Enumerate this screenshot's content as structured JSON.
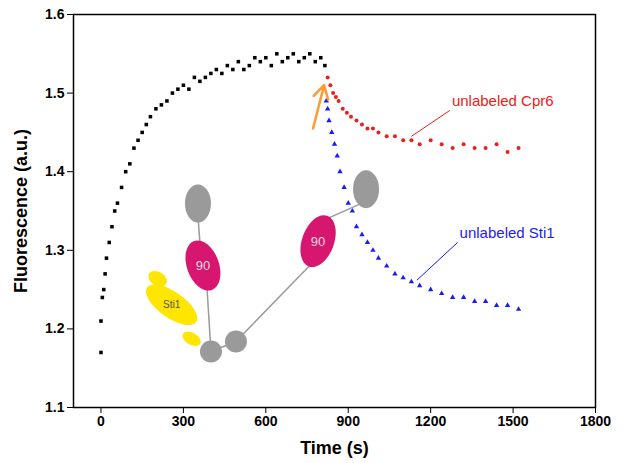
{
  "chart_data": {
    "type": "scatter",
    "x_label": "Time (s)",
    "y_label": "Fluorescence (a.u.)",
    "xlim": [
      -100,
      1800
    ],
    "xticks": [
      0,
      300,
      600,
      900,
      1200,
      1500,
      1800
    ],
    "ylim": [
      1.1,
      1.6
    ],
    "yticks": [
      1.1,
      1.2,
      1.3,
      1.4,
      1.5,
      1.6
    ],
    "grid": false,
    "series": [
      {
        "color": "#000000",
        "marker": "square",
        "x": [
          0,
          0,
          5,
          10,
          15,
          20,
          30,
          40,
          50,
          60,
          75,
          90,
          105,
          120,
          135,
          150,
          165,
          180,
          200,
          220,
          240,
          260,
          280,
          300,
          320,
          340,
          360,
          380,
          400,
          420,
          440,
          460,
          480,
          500,
          520,
          540,
          560,
          580,
          600,
          620,
          640,
          660,
          680,
          700,
          720,
          740,
          760,
          780,
          800,
          815
        ],
        "values": [
          1.17,
          1.21,
          1.24,
          1.25,
          1.27,
          1.29,
          1.31,
          1.33,
          1.35,
          1.36,
          1.38,
          1.4,
          1.41,
          1.43,
          1.44,
          1.45,
          1.46,
          1.47,
          1.48,
          1.485,
          1.49,
          1.5,
          1.505,
          1.51,
          1.505,
          1.52,
          1.515,
          1.52,
          1.525,
          1.53,
          1.525,
          1.535,
          1.53,
          1.54,
          1.53,
          1.535,
          1.545,
          1.54,
          1.545,
          1.535,
          1.55,
          1.54,
          1.545,
          1.55,
          1.54,
          1.545,
          1.55,
          1.54,
          1.545,
          1.535
        ]
      },
      {
        "color": "#e8211d",
        "marker": "circle",
        "x": [
          825,
          835,
          845,
          855,
          865,
          880,
          895,
          910,
          930,
          950,
          970,
          990,
          1010,
          1040,
          1070,
          1100,
          1130,
          1160,
          1200,
          1240,
          1280,
          1320,
          1360,
          1400,
          1440,
          1480,
          1520
        ],
        "values": [
          1.52,
          1.51,
          1.5,
          1.495,
          1.49,
          1.48,
          1.475,
          1.47,
          1.465,
          1.46,
          1.455,
          1.455,
          1.45,
          1.445,
          1.445,
          1.44,
          1.44,
          1.435,
          1.44,
          1.435,
          1.43,
          1.435,
          1.43,
          1.43,
          1.435,
          1.425,
          1.43
        ]
      },
      {
        "color": "#1a1aff",
        "marker": "triangle",
        "x": [
          820,
          825,
          830,
          840,
          850,
          860,
          870,
          885,
          900,
          915,
          930,
          950,
          970,
          990,
          1010,
          1040,
          1070,
          1100,
          1130,
          1160,
          1200,
          1240,
          1280,
          1320,
          1360,
          1400,
          1440,
          1480,
          1520
        ],
        "values": [
          1.49,
          1.48,
          1.465,
          1.45,
          1.435,
          1.42,
          1.4,
          1.38,
          1.36,
          1.35,
          1.33,
          1.32,
          1.31,
          1.3,
          1.29,
          1.28,
          1.27,
          1.265,
          1.26,
          1.255,
          1.25,
          1.245,
          1.24,
          1.24,
          1.235,
          1.235,
          1.23,
          1.23,
          1.225
        ]
      }
    ],
    "annotations": [
      {
        "text": "unlabeled Cpr6",
        "color": "#e8211d",
        "x": 1270,
        "y": 1.478,
        "point": [
          1130,
          1.445
        ]
      },
      {
        "text": "unlabeled Sti1",
        "color": "#1a1aff",
        "x": 1298,
        "y": 1.31,
        "point": [
          1150,
          1.262
        ]
      }
    ],
    "arrow": {
      "color": "#ff9a2e",
      "from": [
        772,
        1.455
      ],
      "to": [
        812,
        1.51
      ]
    },
    "cartoon_labels": [
      {
        "text": "90",
        "x": 373,
        "y": 1.28
      },
      {
        "text": "90",
        "x": 792,
        "y": 1.311
      },
      {
        "text": "Sti1",
        "x": 259,
        "y": 1.23
      }
    ]
  }
}
